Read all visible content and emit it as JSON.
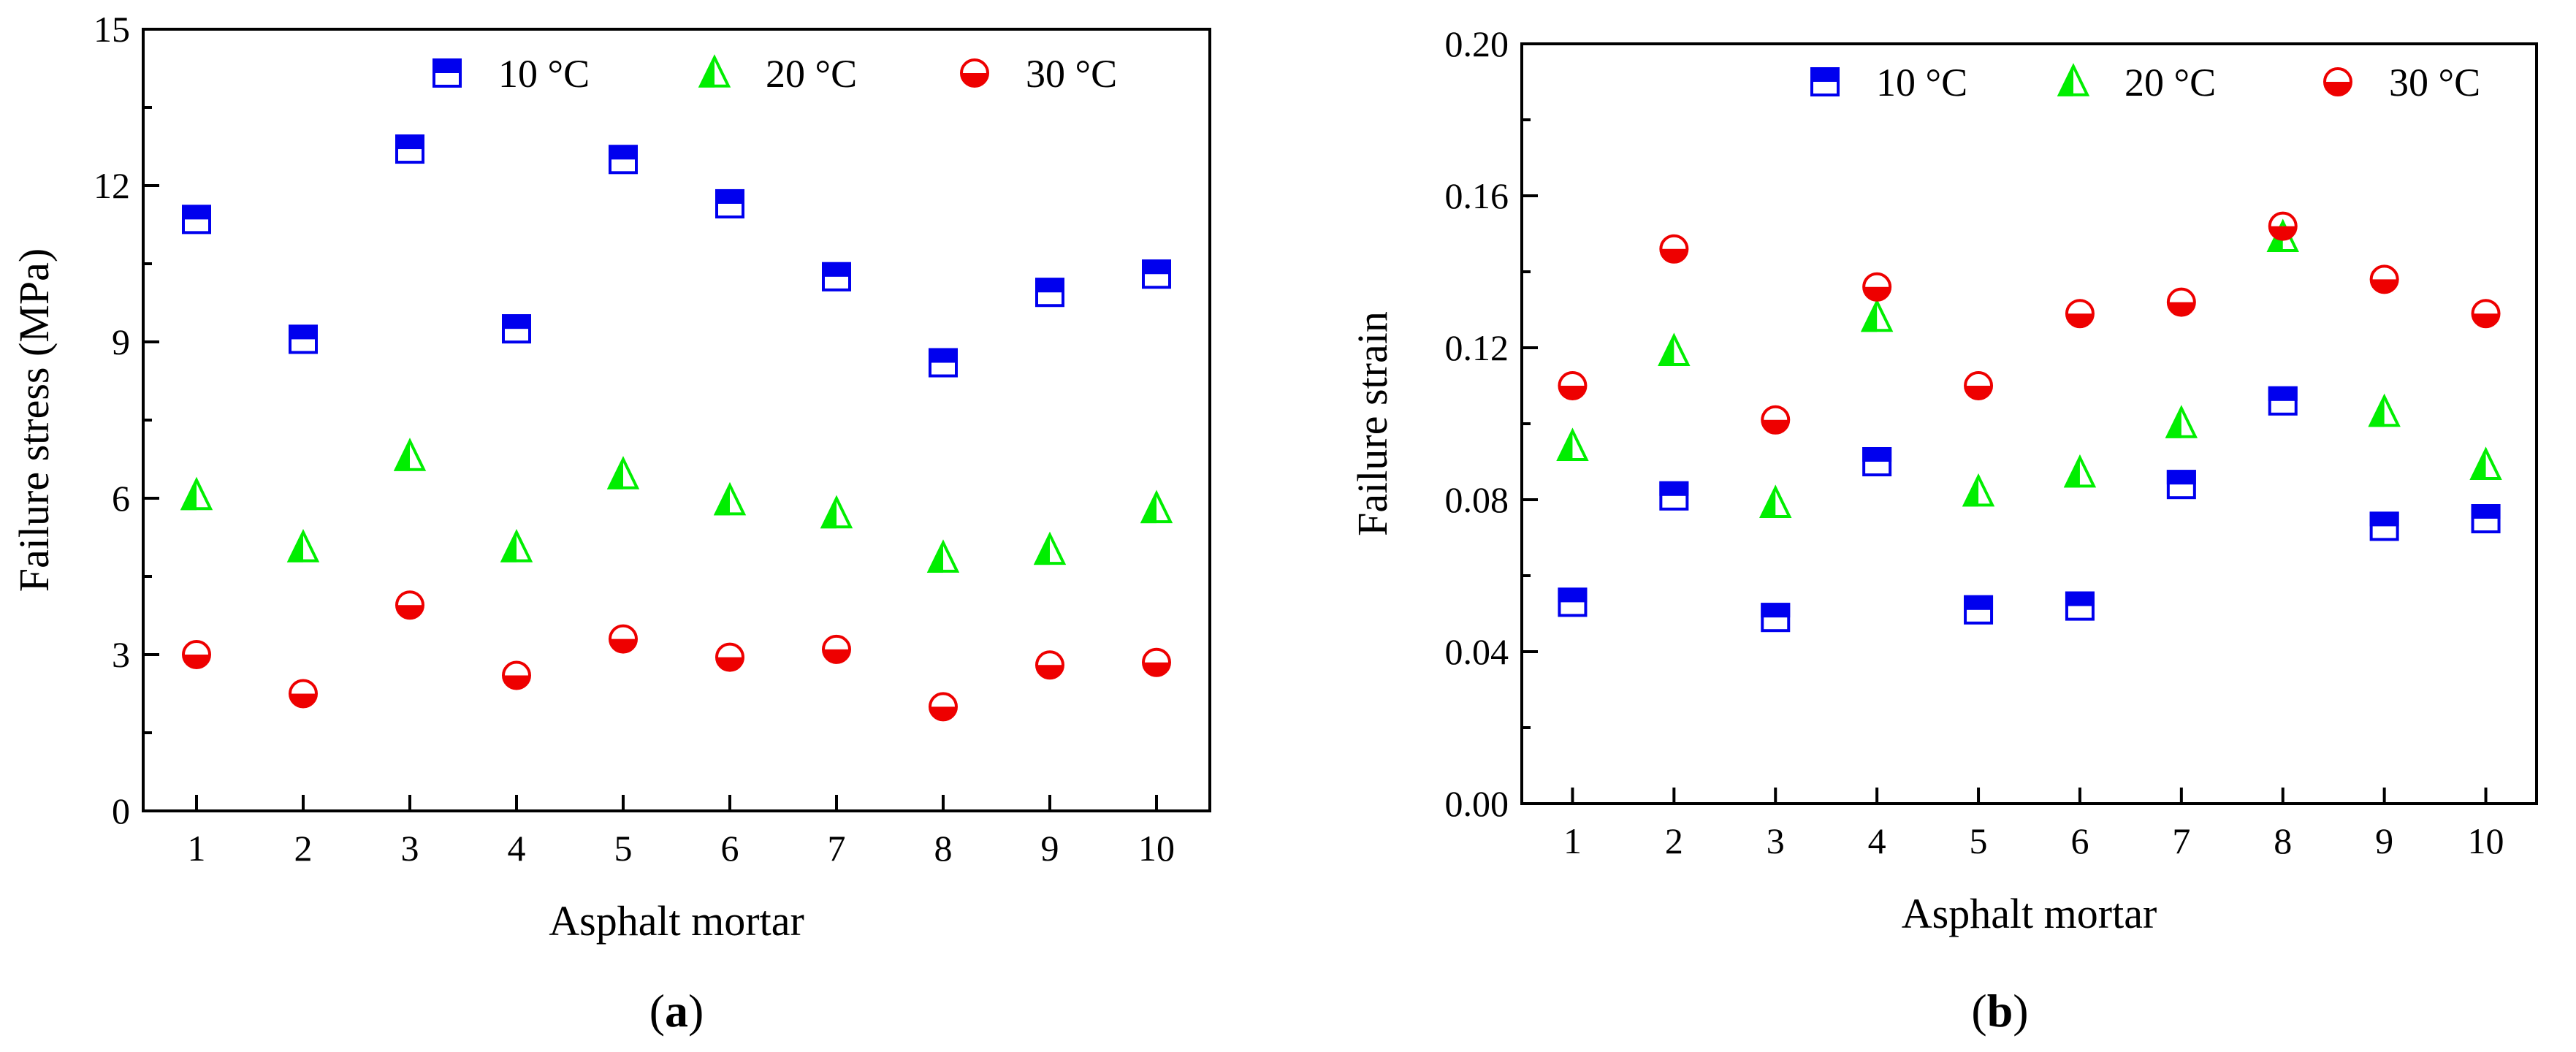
{
  "colors": {
    "series_10": "#0000ee",
    "series_20": "#00ee00",
    "series_30": "#ee0000",
    "axis": "#000000"
  },
  "chart_data": [
    {
      "type": "scatter",
      "panel_label": {
        "open": "(",
        "letter": "a",
        "close": ")"
      },
      "xlabel": "Asphalt mortar",
      "ylabel": "Failure stress (MPa)",
      "xlim": [
        0.5,
        10.5
      ],
      "ylim": [
        0,
        15
      ],
      "yticks": [
        0,
        3,
        6,
        9,
        12,
        15
      ],
      "ytick_labels": [
        "0",
        "3",
        "6",
        "9",
        "12",
        "15"
      ],
      "xticks": [
        1,
        2,
        3,
        4,
        5,
        6,
        7,
        8,
        9,
        10
      ],
      "xtick_labels": [
        "1",
        "2",
        "3",
        "4",
        "5",
        "6",
        "7",
        "8",
        "9",
        "10"
      ],
      "grid": false,
      "legend_position": "top-right",
      "series": [
        {
          "name": "10 °C",
          "marker": "half-filled-square",
          "color_key": "series_10",
          "x": [
            1,
            2,
            3,
            4,
            5,
            6,
            7,
            8,
            9,
            10
          ],
          "y": [
            11.35,
            9.05,
            12.7,
            9.25,
            12.5,
            11.65,
            10.25,
            8.6,
            9.95,
            10.3
          ]
        },
        {
          "name": "20 °C",
          "marker": "half-filled-triangle",
          "color_key": "series_20",
          "x": [
            1,
            2,
            3,
            4,
            5,
            6,
            7,
            8,
            9,
            10
          ],
          "y": [
            6.05,
            5.05,
            6.8,
            5.05,
            6.45,
            5.95,
            5.7,
            4.85,
            5.0,
            5.8
          ]
        },
        {
          "name": "30 °C",
          "marker": "half-filled-circle",
          "color_key": "series_30",
          "x": [
            1,
            2,
            3,
            4,
            5,
            6,
            7,
            8,
            9,
            10
          ],
          "y": [
            3.0,
            2.25,
            3.95,
            2.6,
            3.3,
            2.95,
            3.1,
            2.0,
            2.8,
            2.85
          ]
        }
      ]
    },
    {
      "type": "scatter",
      "panel_label": {
        "open": "(",
        "letter": "b",
        "close": ")"
      },
      "xlabel": "Asphalt mortar",
      "ylabel": "Failure strain",
      "xlim": [
        0.5,
        10.5
      ],
      "ylim": [
        0,
        0.2
      ],
      "yticks": [
        0,
        0.04,
        0.08,
        0.12,
        0.16,
        0.2
      ],
      "ytick_labels": [
        "0.00",
        "0.04",
        "0.08",
        "0.12",
        "0.16",
        "0.20"
      ],
      "xticks": [
        1,
        2,
        3,
        4,
        5,
        6,
        7,
        8,
        9,
        10
      ],
      "xtick_labels": [
        "1",
        "2",
        "3",
        "4",
        "5",
        "6",
        "7",
        "8",
        "9",
        "10"
      ],
      "grid": false,
      "legend_position": "top-right",
      "series": [
        {
          "name": "10 °C",
          "marker": "half-filled-square",
          "color_key": "series_10",
          "x": [
            1,
            2,
            3,
            4,
            5,
            6,
            7,
            8,
            9,
            10
          ],
          "y": [
            0.053,
            0.081,
            0.049,
            0.09,
            0.051,
            0.052,
            0.084,
            0.106,
            0.073,
            0.075
          ]
        },
        {
          "name": "20 °C",
          "marker": "half-filled-triangle",
          "color_key": "series_20",
          "x": [
            1,
            2,
            3,
            4,
            5,
            6,
            7,
            8,
            9,
            10
          ],
          "y": [
            0.094,
            0.119,
            0.079,
            0.128,
            0.082,
            0.087,
            0.1,
            0.149,
            0.103,
            0.089
          ]
        },
        {
          "name": "30 °C",
          "marker": "half-filled-circle",
          "color_key": "series_30",
          "x": [
            1,
            2,
            3,
            4,
            5,
            6,
            7,
            8,
            9,
            10
          ],
          "y": [
            0.11,
            0.146,
            0.101,
            0.136,
            0.11,
            0.129,
            0.132,
            0.152,
            0.138,
            0.129
          ]
        }
      ]
    }
  ]
}
